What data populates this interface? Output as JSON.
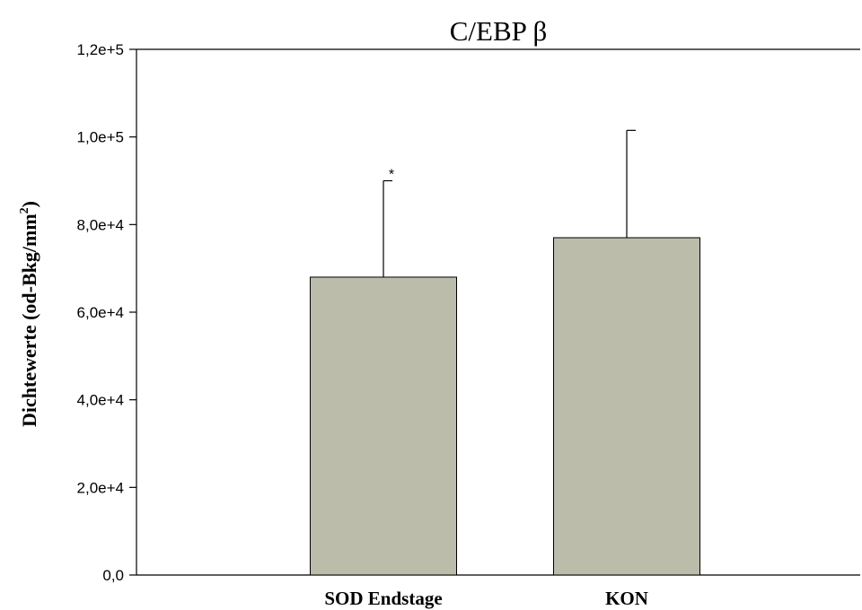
{
  "chart_data": {
    "type": "bar",
    "title": "C/EBP β",
    "ylabel": "Dichtewerte (od-Bkg/mm²)",
    "ylabel_main": "Dichtewerte (od-Bkg/mm",
    "ylabel_sup": "2",
    "ylabel_close": ")",
    "xlabel": "",
    "categories": [
      "SOD Endstage",
      "KON"
    ],
    "values": [
      68000,
      77000
    ],
    "error_upper": [
      90000,
      101500
    ],
    "annotations": [
      "*",
      ""
    ],
    "ylim": [
      0,
      120000
    ],
    "yticks": [
      0,
      20000,
      40000,
      60000,
      80000,
      100000,
      120000
    ],
    "ytick_labels": [
      "0,0",
      "2,0e+4",
      "4,0e+4",
      "6,0e+4",
      "8,0e+4",
      "1,0e+5",
      "1,2e+5"
    ],
    "bar_color": "#bbbcaa",
    "grid": false,
    "legend": "none"
  }
}
